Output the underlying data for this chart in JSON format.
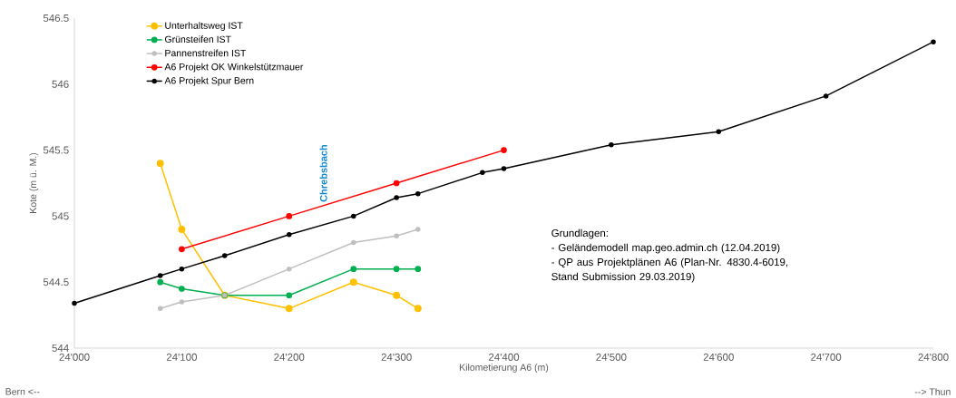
{
  "chart_data": {
    "type": "line",
    "xlabel": "Kilometierung A6 (m)",
    "ylabel": "Kote (m ü. M.)",
    "xlim": [
      24000,
      24800
    ],
    "ylim": [
      544,
      546.5
    ],
    "xticks": [
      {
        "value": 24000,
        "label": "24'000"
      },
      {
        "value": 24100,
        "label": "24'100"
      },
      {
        "value": 24200,
        "label": "24'200"
      },
      {
        "value": 24300,
        "label": "24'300"
      },
      {
        "value": 24400,
        "label": "24'400"
      },
      {
        "value": 24500,
        "label": "24'500"
      },
      {
        "value": 24600,
        "label": "24'600"
      },
      {
        "value": 24700,
        "label": "24'700"
      },
      {
        "value": 24800,
        "label": "24'800"
      }
    ],
    "yticks": [
      544,
      544.5,
      545,
      545.5,
      546,
      546.5
    ],
    "legend": "top left",
    "marker": "circle",
    "line_style": "solid",
    "grid": false,
    "series": [
      {
        "name": "Unterhaltsweg IST",
        "color": "#ffc000",
        "x": [
          24080,
          24100,
          24140,
          24200,
          24260,
          24300,
          24320
        ],
        "values": [
          545.4,
          544.9,
          544.4,
          544.3,
          544.5,
          544.4,
          544.3
        ]
      },
      {
        "name": "Grünsteifen IST",
        "color": "#00b050",
        "x": [
          24080,
          24100,
          24140,
          24200,
          24260,
          24300,
          24320
        ],
        "values": [
          544.5,
          544.45,
          544.4,
          544.4,
          544.6,
          544.6,
          544.6
        ]
      },
      {
        "name": "Pannenstreifen IST",
        "color": "#bfbfbf",
        "x": [
          24080,
          24100,
          24140,
          24200,
          24260,
          24300,
          24320
        ],
        "values": [
          544.3,
          544.35,
          544.4,
          544.6,
          544.8,
          544.85,
          544.9
        ]
      },
      {
        "name": "A6 Projekt OK Winkelstützmauer",
        "color": "#ff0000",
        "x": [
          24100,
          24200,
          24300,
          24400
        ],
        "values": [
          544.75,
          545.0,
          545.25,
          545.5
        ]
      },
      {
        "name": "A6 Projekt Spur Bern",
        "color": "#000000",
        "x": [
          24000,
          24080,
          24100,
          24140,
          24200,
          24260,
          24300,
          24320,
          24380,
          24400,
          24500,
          24600,
          24700,
          24800
        ],
        "values": [
          544.34,
          544.55,
          544.6,
          544.7,
          544.86,
          545.0,
          545.14,
          545.17,
          545.33,
          545.36,
          545.54,
          545.64,
          545.91,
          546.32
        ]
      }
    ],
    "annotations": [
      "Chrebsbach",
      "Bern <--",
      "--> Thun",
      "Grundlagen:",
      "- Geländemodell map.geo.admin.ch (12.04.2019)",
      "- QP aus Projektplänen A6 (Plan-Nr. 4830.4-6019, Stand Submission 29.03.2019)"
    ]
  }
}
